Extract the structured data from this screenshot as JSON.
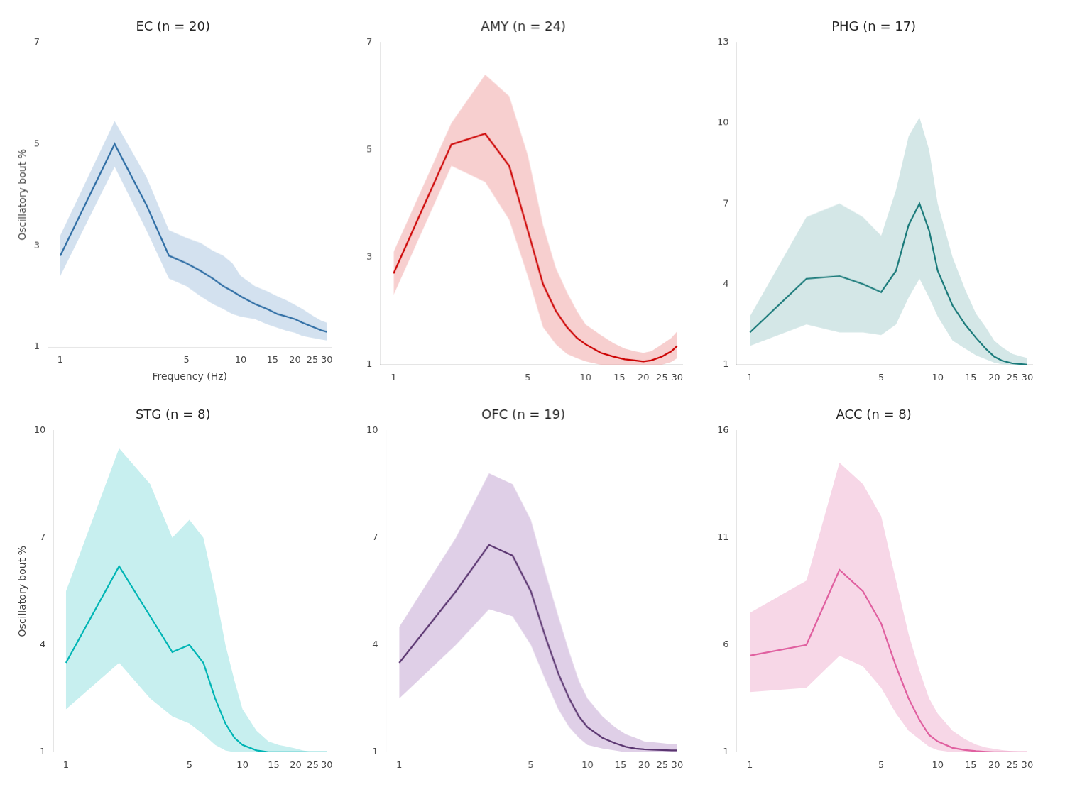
{
  "chart_data": [
    {
      "type": "line",
      "title": "EC (n = 20)",
      "xlabel": "Frequency (Hz)",
      "ylabel": "Oscillatory bout %",
      "x": [
        1,
        2,
        3,
        4,
        5,
        6,
        7,
        8,
        9,
        10,
        12,
        14,
        16,
        18,
        20,
        22,
        25,
        28,
        30
      ],
      "series": [
        {
          "type": "area",
          "color": "#a8c4e0",
          "upper": [
            3.2,
            5.45,
            4.35,
            3.3,
            3.15,
            3.05,
            2.9,
            2.8,
            2.65,
            2.4,
            2.2,
            2.1,
            2.0,
            1.92,
            1.83,
            1.75,
            1.62,
            1.52,
            1.48
          ],
          "lower": [
            2.4,
            4.55,
            3.3,
            2.35,
            2.2,
            2.0,
            1.85,
            1.75,
            1.65,
            1.6,
            1.55,
            1.45,
            1.38,
            1.32,
            1.28,
            1.22,
            1.18,
            1.15,
            1.13
          ]
        },
        {
          "type": "line",
          "color": "#2e6da4",
          "values": [
            2.8,
            5.0,
            3.8,
            2.8,
            2.65,
            2.5,
            2.35,
            2.2,
            2.1,
            2.0,
            1.85,
            1.75,
            1.65,
            1.6,
            1.55,
            1.48,
            1.4,
            1.33,
            1.3
          ]
        }
      ],
      "log": "x",
      "xlim": [
        0.85,
        32
      ],
      "xticks": [
        1,
        5,
        10,
        15,
        20,
        25,
        30
      ],
      "ylim": [
        1,
        7
      ],
      "yticks": [
        1,
        3,
        5,
        7
      ],
      "grid": false
    },
    {
      "type": "line",
      "title": "AMY (n = 24)",
      "x": [
        1,
        2,
        3,
        4,
        5,
        6,
        7,
        8,
        9,
        10,
        12,
        14,
        16,
        18,
        20,
        22,
        25,
        28,
        30
      ],
      "series": [
        {
          "type": "area",
          "color": "#f0a0a0",
          "upper": [
            3.1,
            5.5,
            6.4,
            6.0,
            4.9,
            3.6,
            2.8,
            2.35,
            2.0,
            1.75,
            1.55,
            1.4,
            1.3,
            1.25,
            1.22,
            1.25,
            1.38,
            1.5,
            1.62
          ],
          "lower": [
            2.3,
            4.7,
            4.4,
            3.7,
            2.65,
            1.7,
            1.38,
            1.2,
            1.12,
            1.06,
            1.0,
            1.0,
            1.0,
            1.0,
            1.0,
            1.0,
            1.0,
            1.05,
            1.12
          ]
        },
        {
          "type": "line",
          "color": "#cc0000",
          "values": [
            2.7,
            5.1,
            5.3,
            4.7,
            3.5,
            2.5,
            2.0,
            1.7,
            1.5,
            1.38,
            1.22,
            1.15,
            1.1,
            1.08,
            1.06,
            1.08,
            1.15,
            1.25,
            1.35
          ]
        }
      ],
      "log": "x",
      "xlim": [
        0.85,
        32
      ],
      "xticks": [
        1,
        5,
        10,
        15,
        20,
        25,
        30
      ],
      "ylim": [
        1,
        7
      ],
      "yticks": [
        1,
        3,
        5,
        7
      ],
      "grid": false
    },
    {
      "type": "line",
      "title": "PHG (n = 17)",
      "x": [
        1,
        2,
        3,
        4,
        5,
        6,
        7,
        8,
        9,
        10,
        12,
        14,
        16,
        18,
        20,
        22,
        25,
        28,
        30
      ],
      "series": [
        {
          "type": "area",
          "color": "#aacfcf",
          "upper": [
            2.8,
            6.5,
            7.0,
            6.5,
            5.8,
            7.5,
            9.5,
            10.2,
            9.0,
            7.0,
            5.0,
            3.8,
            2.9,
            2.4,
            1.9,
            1.65,
            1.4,
            1.3,
            1.25
          ],
          "lower": [
            1.7,
            2.5,
            2.2,
            2.2,
            2.1,
            2.5,
            3.5,
            4.2,
            3.5,
            2.8,
            1.9,
            1.6,
            1.35,
            1.2,
            1.08,
            1.02,
            1.0,
            1.0,
            1.0
          ]
        },
        {
          "type": "line",
          "color": "#1a7a7a",
          "values": [
            2.2,
            4.2,
            4.3,
            4.0,
            3.7,
            4.5,
            6.2,
            7.0,
            6.0,
            4.5,
            3.2,
            2.5,
            2.0,
            1.6,
            1.3,
            1.15,
            1.05,
            1.02,
            1.0
          ]
        }
      ],
      "log": "x",
      "xlim": [
        0.85,
        32
      ],
      "xticks": [
        1,
        5,
        10,
        15,
        20,
        25,
        30
      ],
      "ylim": [
        1,
        13
      ],
      "yticks": [
        1,
        4,
        7,
        10,
        13
      ],
      "grid": false
    },
    {
      "type": "line",
      "title": "STG (n = 8)",
      "ylabel": "Oscillatory bout %",
      "x": [
        1,
        2,
        3,
        4,
        5,
        6,
        7,
        8,
        9,
        10,
        12,
        14,
        16,
        18,
        20,
        22,
        25,
        28,
        30
      ],
      "series": [
        {
          "type": "area",
          "color": "#90e0e0",
          "upper": [
            5.5,
            9.5,
            8.5,
            7.0,
            7.5,
            7.0,
            5.5,
            4.0,
            3.0,
            2.2,
            1.6,
            1.3,
            1.2,
            1.15,
            1.1,
            1.05,
            1.0,
            1.0,
            1.0
          ],
          "lower": [
            2.2,
            3.5,
            2.5,
            2.0,
            1.8,
            1.5,
            1.2,
            1.05,
            1.0,
            1.0,
            1.0,
            1.0,
            1.0,
            1.0,
            1.0,
            1.0,
            1.0,
            1.0,
            1.0
          ]
        },
        {
          "type": "line",
          "color": "#00b5b5",
          "values": [
            3.5,
            6.2,
            4.8,
            3.8,
            4.0,
            3.5,
            2.5,
            1.8,
            1.4,
            1.2,
            1.05,
            1.0,
            1.0,
            1.0,
            1.0,
            1.0,
            1.0,
            1.0,
            1.0
          ]
        }
      ],
      "log": "x",
      "xlim": [
        0.85,
        32
      ],
      "xticks": [
        1,
        5,
        10,
        15,
        20,
        25,
        30
      ],
      "ylim": [
        1,
        10
      ],
      "yticks": [
        1,
        4,
        7,
        10
      ],
      "grid": false
    },
    {
      "type": "line",
      "title": "OFC (n = 19)",
      "x": [
        1,
        2,
        3,
        4,
        5,
        6,
        7,
        8,
        9,
        10,
        12,
        14,
        16,
        18,
        20,
        22,
        25,
        28,
        30
      ],
      "series": [
        {
          "type": "area",
          "color": "#c0a0d0",
          "upper": [
            4.5,
            7.0,
            8.8,
            8.5,
            7.5,
            6.0,
            4.8,
            3.8,
            3.0,
            2.5,
            2.0,
            1.7,
            1.5,
            1.4,
            1.3,
            1.28,
            1.25,
            1.22,
            1.22
          ],
          "lower": [
            2.5,
            4.0,
            5.0,
            4.8,
            4.0,
            3.0,
            2.2,
            1.7,
            1.4,
            1.2,
            1.1,
            1.05,
            1.0,
            1.0,
            1.0,
            1.0,
            1.0,
            1.0,
            1.0
          ]
        },
        {
          "type": "line",
          "color": "#5a3570",
          "values": [
            3.5,
            5.5,
            6.8,
            6.5,
            5.5,
            4.2,
            3.2,
            2.5,
            2.0,
            1.7,
            1.4,
            1.25,
            1.15,
            1.1,
            1.08,
            1.07,
            1.06,
            1.05,
            1.05
          ]
        }
      ],
      "log": "x",
      "xlim": [
        0.85,
        32
      ],
      "xticks": [
        1,
        5,
        10,
        15,
        20,
        25,
        30
      ],
      "ylim": [
        1,
        10
      ],
      "yticks": [
        1,
        4,
        7,
        10
      ],
      "grid": false
    },
    {
      "type": "line",
      "title": "ACC (n = 8)",
      "x": [
        1,
        2,
        3,
        4,
        5,
        6,
        7,
        8,
        9,
        10,
        12,
        14,
        16,
        18,
        20,
        22,
        25,
        28,
        30
      ],
      "series": [
        {
          "type": "area",
          "color": "#f0b0d0",
          "upper": [
            7.5,
            9.0,
            14.5,
            13.5,
            12.0,
            9.0,
            6.5,
            4.8,
            3.5,
            2.8,
            2.0,
            1.6,
            1.35,
            1.22,
            1.15,
            1.1,
            1.05,
            1.02,
            1.02
          ],
          "lower": [
            3.8,
            4.0,
            5.5,
            5.0,
            4.0,
            2.8,
            2.0,
            1.6,
            1.25,
            1.1,
            1.0,
            1.0,
            1.0,
            1.0,
            1.0,
            1.0,
            1.0,
            1.0,
            1.0
          ]
        },
        {
          "type": "line",
          "color": "#e060a0",
          "values": [
            5.5,
            6.0,
            9.5,
            8.5,
            7.0,
            5.0,
            3.5,
            2.5,
            1.8,
            1.5,
            1.2,
            1.1,
            1.05,
            1.02,
            1.0,
            1.0,
            1.0,
            1.0,
            1.0
          ]
        }
      ],
      "log": "x",
      "xlim": [
        0.85,
        32
      ],
      "xticks": [
        1,
        5,
        10,
        15,
        20,
        25,
        30
      ],
      "ylim": [
        1,
        16
      ],
      "yticks": [
        1,
        6,
        11,
        16
      ],
      "grid": false
    }
  ]
}
